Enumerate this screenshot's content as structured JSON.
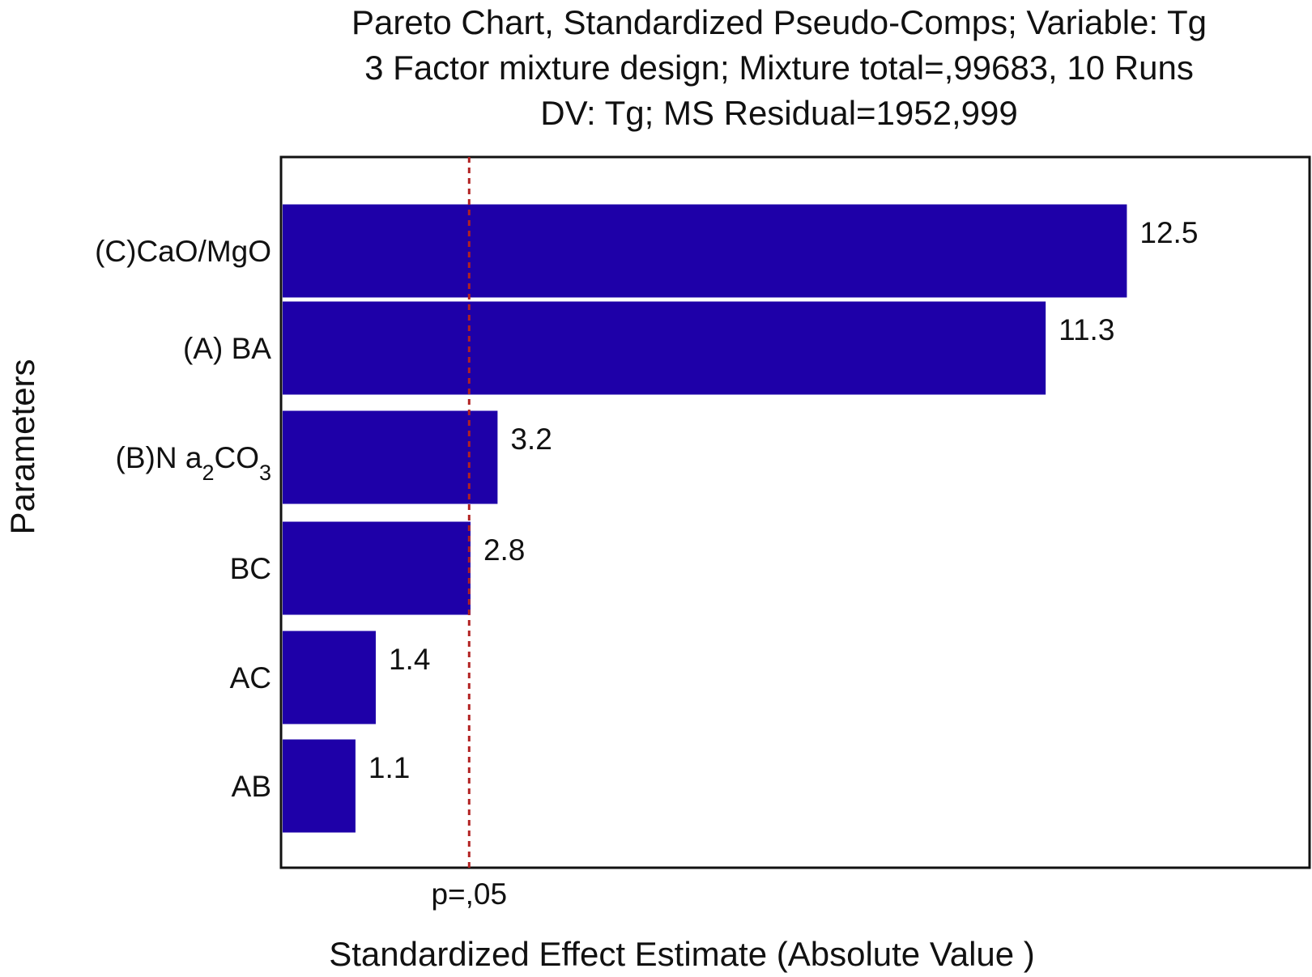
{
  "chart_data": {
    "type": "bar",
    "orientation": "horizontal",
    "title": [
      "Pareto Chart, Standardized Pseudo-Comps; Variable: Tg",
      "3 Factor mixture design; Mixture total=,99683, 10 Runs",
      "DV: Tg; MS Residual=1952,999"
    ],
    "xlabel": "Standardized Effect Estimate (Absolute Value )",
    "ylabel": "Parameters",
    "categories": [
      "(C)CaO/MgO",
      "(A) BA",
      "(B)N a2CO3",
      "BC",
      "AC",
      "AB"
    ],
    "category_label_parts": [
      [
        {
          "t": "(C)CaO/MgO"
        }
      ],
      [
        {
          "t": "(A) BA"
        }
      ],
      [
        {
          "t": "(B)N a"
        },
        {
          "t": "2",
          "sub": true
        },
        {
          "t": "CO"
        },
        {
          "t": "3",
          "sub": true
        }
      ],
      [
        {
          "t": "BC"
        }
      ],
      [
        {
          "t": "AC"
        }
      ],
      [
        {
          "t": "AB"
        }
      ]
    ],
    "values": [
      12.5,
      11.3,
      3.2,
      2.8,
      1.4,
      1.1
    ],
    "value_labels": [
      "12.5",
      "11.3",
      "3.2",
      "2.8",
      "1.4",
      "1.1"
    ],
    "xlim": [
      0,
      15.2
    ],
    "reference_line": {
      "value": 2.78,
      "label": "p=,05",
      "color": "#b22222",
      "style": "dashed"
    },
    "bar_color": "#1e00a8",
    "grid": false,
    "legend": "none"
  }
}
